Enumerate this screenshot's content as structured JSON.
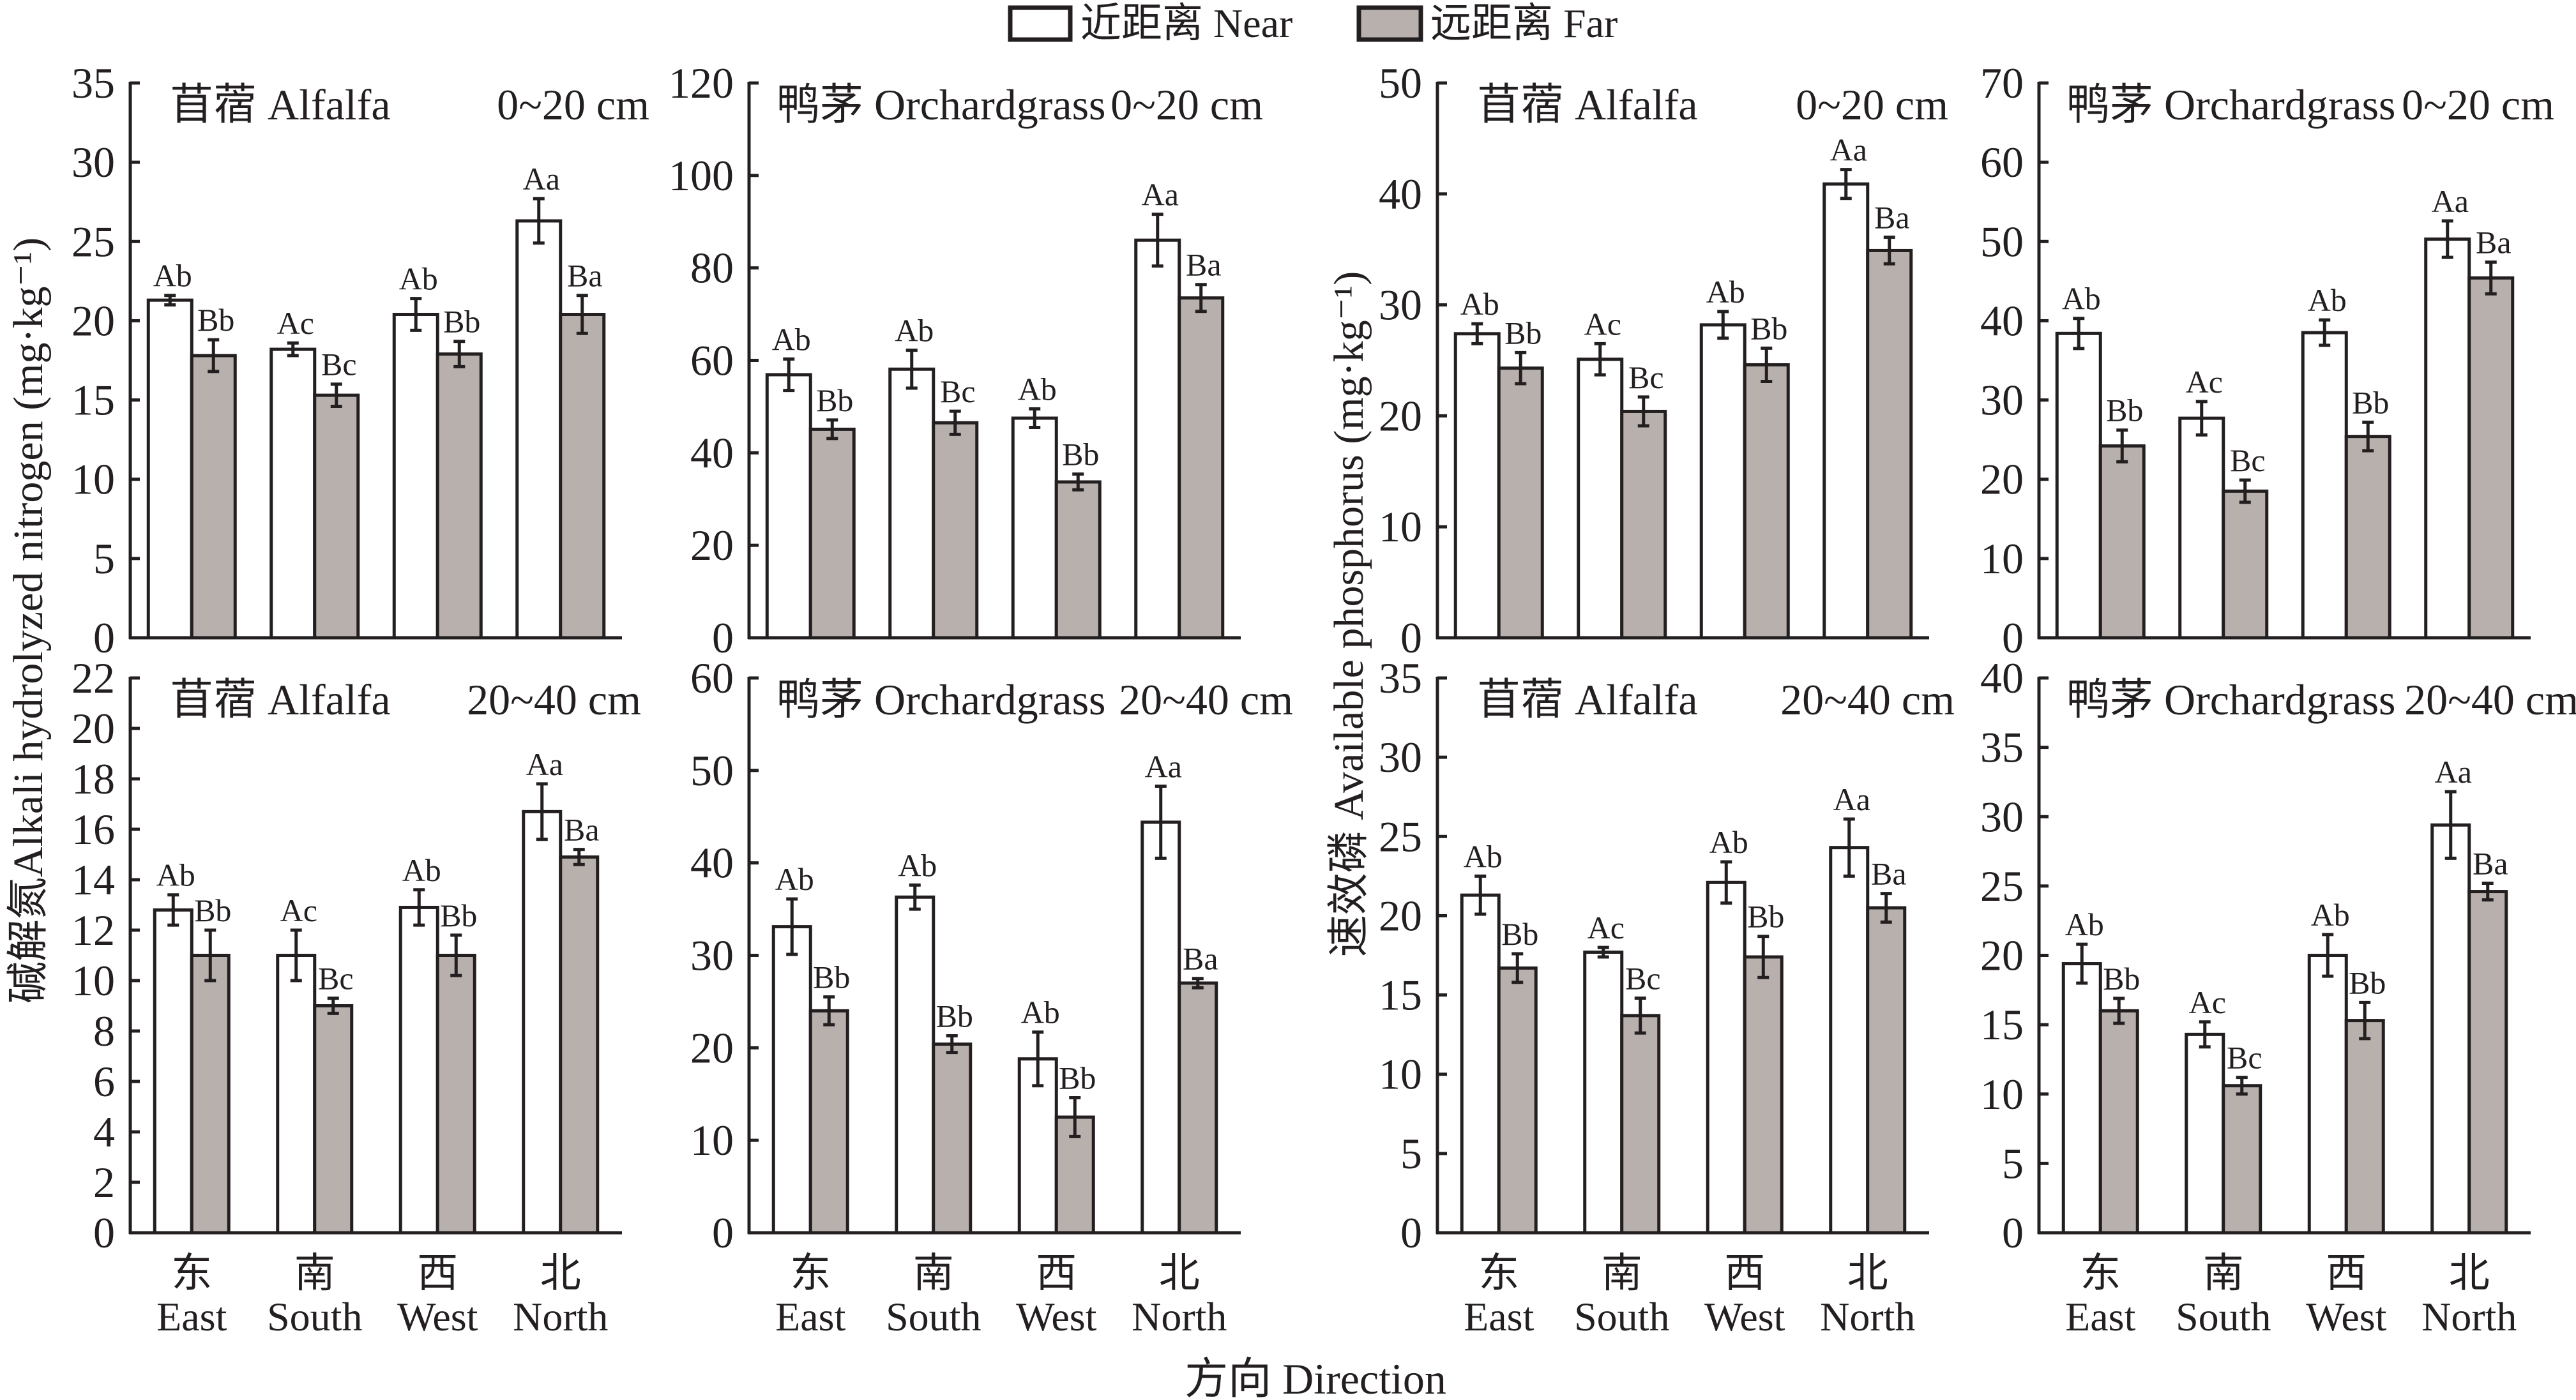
{
  "figure": {
    "legend_placement": "top-center",
    "legend": [
      {
        "label": "近距离 Near",
        "color": "#ffffff"
      },
      {
        "label": "远距离 Far",
        "color": "#b8b0ac"
      }
    ],
    "y_axis_labels": {
      "nitrogen": "碱解氮Alkali hydrolyzed nitrogen (mg·kg⁻¹)",
      "phosphorus": "速效磷  Available phosphorus (mg·kg⁻¹)"
    },
    "x_axis_title": "方向 Direction",
    "stroke_color": "#231f20"
  },
  "chart_data": [
    {
      "type": "bar",
      "title": "苜蓿 Alfalfa",
      "subtitle": "0~20 cm",
      "ylabel": "碱解氮Alkali hydrolyzed nitrogen (mg·kg⁻¹)",
      "xlabel": "方向 Direction",
      "categories": [
        "East",
        "South",
        "West",
        "North"
      ],
      "categories_zh": [
        "东",
        "南",
        "西",
        "北"
      ],
      "ylim": [
        0,
        35
      ],
      "yticks": [
        0,
        5,
        10,
        15,
        20,
        25,
        30,
        35
      ],
      "grid": false,
      "series": [
        {
          "name": "近距离 Near",
          "values": [
            21.3,
            18.2,
            20.4,
            26.3
          ],
          "errors": [
            0.3,
            0.4,
            1.0,
            1.4
          ],
          "letters": [
            "Ab",
            "Ac",
            "Ab",
            "Aa"
          ]
        },
        {
          "name": "远距离 Far",
          "values": [
            17.8,
            15.3,
            17.9,
            20.4
          ],
          "errors": [
            1.0,
            0.7,
            0.8,
            1.2
          ],
          "letters": [
            "Bb",
            "Bc",
            "Bb",
            "Ba"
          ]
        }
      ]
    },
    {
      "type": "bar",
      "title": "鸭茅 Orchardgrass",
      "subtitle": "0~20 cm",
      "ylabel": "碱解氮Alkali hydrolyzed nitrogen (mg·kg⁻¹)",
      "xlabel": "方向 Direction",
      "categories": [
        "East",
        "South",
        "West",
        "North"
      ],
      "categories_zh": [
        "东",
        "南",
        "西",
        "北"
      ],
      "ylim": [
        0,
        120
      ],
      "yticks": [
        0,
        20,
        40,
        60,
        80,
        100,
        120
      ],
      "grid": false,
      "series": [
        {
          "name": "近距离 Near",
          "values": [
            56.9,
            58.1,
            47.5,
            86.0
          ],
          "errors": [
            3.4,
            4.1,
            2.0,
            5.6
          ],
          "letters": [
            "Ab",
            "Ab",
            "Ab",
            "Aa"
          ]
        },
        {
          "name": "远距离 Far",
          "values": [
            45.1,
            46.5,
            33.7,
            73.5
          ],
          "errors": [
            2.0,
            2.5,
            1.7,
            2.9
          ],
          "letters": [
            "Bb",
            "Bc",
            "Bb",
            "Ba"
          ]
        }
      ]
    },
    {
      "type": "bar",
      "title": "苜蓿 Alfalfa",
      "subtitle": "0~20 cm",
      "ylabel": "速效磷 Available phosphorus (mg·kg⁻¹)",
      "xlabel": "方向 Direction",
      "categories": [
        "East",
        "South",
        "West",
        "North"
      ],
      "categories_zh": [
        "东",
        "南",
        "西",
        "北"
      ],
      "ylim": [
        0,
        50
      ],
      "yticks": [
        0,
        10,
        20,
        30,
        40,
        50
      ],
      "grid": false,
      "series": [
        {
          "name": "近距离 Near",
          "values": [
            27.4,
            25.1,
            28.2,
            40.9
          ],
          "errors": [
            0.9,
            1.4,
            1.2,
            1.3
          ],
          "letters": [
            "Ab",
            "Ac",
            "Ab",
            "Aa"
          ]
        },
        {
          "name": "远距离 Far",
          "values": [
            24.3,
            20.4,
            24.6,
            34.9
          ],
          "errors": [
            1.4,
            1.3,
            1.5,
            1.2
          ],
          "letters": [
            "Bb",
            "Bc",
            "Bb",
            "Ba"
          ]
        }
      ]
    },
    {
      "type": "bar",
      "title": "鸭茅 Orchardgrass",
      "subtitle": "0~20 cm",
      "ylabel": "速效磷 Available phosphorus (mg·kg⁻¹)",
      "xlabel": "方向 Direction",
      "categories": [
        "East",
        "South",
        "West",
        "North"
      ],
      "categories_zh": [
        "东",
        "南",
        "西",
        "北"
      ],
      "ylim": [
        0,
        70
      ],
      "yticks": [
        0,
        10,
        20,
        30,
        40,
        50,
        60,
        70
      ],
      "grid": false,
      "series": [
        {
          "name": "近距离 Near",
          "values": [
            38.4,
            27.7,
            38.5,
            50.3
          ],
          "errors": [
            1.9,
            2.1,
            1.6,
            2.3
          ],
          "letters": [
            "Ab",
            "Ac",
            "Ab",
            "Aa"
          ]
        },
        {
          "name": "远距离 Far",
          "values": [
            24.2,
            18.5,
            25.4,
            45.4
          ],
          "errors": [
            2.0,
            1.4,
            1.8,
            2.0
          ],
          "letters": [
            "Bb",
            "Bc",
            "Bb",
            "Ba"
          ]
        }
      ]
    },
    {
      "type": "bar",
      "title": "苜蓿 Alfalfa",
      "subtitle": "20~40 cm",
      "ylabel": "碱解氮Alkali hydrolyzed nitrogen (mg·kg⁻¹)",
      "xlabel": "方向 Direction",
      "categories": [
        "East",
        "South",
        "West",
        "North"
      ],
      "categories_zh": [
        "东",
        "南",
        "西",
        "北"
      ],
      "ylim": [
        0,
        22
      ],
      "yticks": [
        0,
        2,
        4,
        6,
        8,
        10,
        12,
        14,
        16,
        18,
        20,
        22
      ],
      "grid": false,
      "series": [
        {
          "name": "近距离 Near",
          "values": [
            12.8,
            11.0,
            12.9,
            16.7
          ],
          "errors": [
            0.6,
            1.0,
            0.7,
            1.1
          ],
          "letters": [
            "Ab",
            "Ac",
            "Ab",
            "Aa"
          ]
        },
        {
          "name": "远距离 Far",
          "values": [
            11.0,
            9.0,
            11.0,
            14.9
          ],
          "errors": [
            1.0,
            0.3,
            0.8,
            0.3
          ],
          "letters": [
            "Bb",
            "Bc",
            "Bb",
            "Ba"
          ]
        }
      ]
    },
    {
      "type": "bar",
      "title": "鸭茅 Orchardgrass",
      "subtitle": "20~40 cm",
      "ylabel": "碱解氮Alkali hydrolyzed nitrogen (mg·kg⁻¹)",
      "xlabel": "方向 Direction",
      "categories": [
        "East",
        "South",
        "West",
        "North"
      ],
      "categories_zh": [
        "东",
        "南",
        "西",
        "北"
      ],
      "ylim": [
        0,
        60
      ],
      "yticks": [
        0,
        10,
        20,
        30,
        40,
        50,
        60
      ],
      "grid": false,
      "series": [
        {
          "name": "近距离 Near",
          "values": [
            33.1,
            36.3,
            18.8,
            44.4
          ],
          "errors": [
            3.0,
            1.3,
            2.9,
            3.9
          ],
          "letters": [
            "Ab",
            "Ab",
            "Ab",
            "Aa"
          ]
        },
        {
          "name": "远距离 Far",
          "values": [
            24.0,
            20.4,
            12.5,
            27.0
          ],
          "errors": [
            1.5,
            0.9,
            2.1,
            0.5
          ],
          "letters": [
            "Bb",
            "Bb",
            "Bb",
            "Ba"
          ]
        }
      ]
    },
    {
      "type": "bar",
      "title": "苜蓿 Alfalfa",
      "subtitle": "20~40 cm",
      "ylabel": "速效磷 Available phosphorus (mg·kg⁻¹)",
      "xlabel": "方向 Direction",
      "categories": [
        "East",
        "South",
        "West",
        "North"
      ],
      "categories_zh": [
        "东",
        "南",
        "西",
        "北"
      ],
      "ylim": [
        0,
        35
      ],
      "yticks": [
        0,
        5,
        10,
        15,
        20,
        25,
        30,
        35
      ],
      "grid": false,
      "series": [
        {
          "name": "近距离 Near",
          "values": [
            21.3,
            17.7,
            22.1,
            24.3
          ],
          "errors": [
            1.2,
            0.3,
            1.3,
            1.8
          ],
          "letters": [
            "Ab",
            "Ac",
            "Ab",
            "Aa"
          ]
        },
        {
          "name": "远距离 Far",
          "values": [
            16.7,
            13.7,
            17.4,
            20.5
          ],
          "errors": [
            0.9,
            1.1,
            1.3,
            0.9
          ],
          "letters": [
            "Bb",
            "Bc",
            "Bb",
            "Ba"
          ]
        }
      ]
    },
    {
      "type": "bar",
      "title": "鸭茅 Orchardgrass",
      "subtitle": "20~40 cm",
      "ylabel": "速效磷 Available phosphorus (mg·kg⁻¹)",
      "xlabel": "方向 Direction",
      "categories": [
        "East",
        "South",
        "West",
        "North"
      ],
      "categories_zh": [
        "东",
        "南",
        "西",
        "北"
      ],
      "ylim": [
        0,
        40
      ],
      "yticks": [
        0,
        5,
        10,
        15,
        20,
        25,
        30,
        35,
        40
      ],
      "grid": false,
      "series": [
        {
          "name": "近距离 Near",
          "values": [
            19.4,
            14.3,
            20.0,
            29.4
          ],
          "errors": [
            1.4,
            0.9,
            1.5,
            2.4
          ],
          "letters": [
            "Ab",
            "Ac",
            "Ab",
            "Aa"
          ]
        },
        {
          "name": "远距离 Far",
          "values": [
            16.0,
            10.6,
            15.3,
            24.6
          ],
          "errors": [
            0.9,
            0.6,
            1.3,
            0.6
          ],
          "letters": [
            "Bb",
            "Bc",
            "Bb",
            "Ba"
          ]
        }
      ]
    }
  ]
}
